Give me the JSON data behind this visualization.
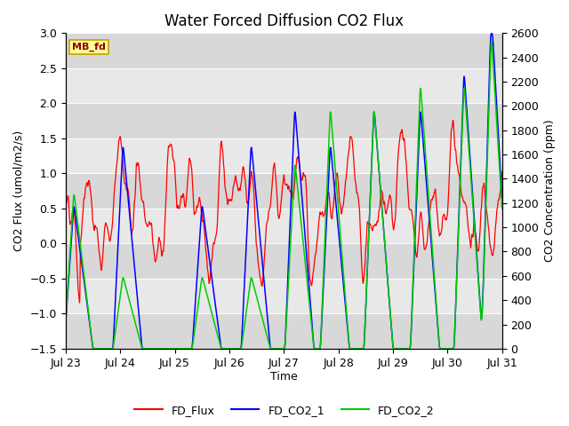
{
  "title": "Water Forced Diffusion CO2 Flux",
  "xlabel": "Time",
  "ylabel_left": "CO2 Flux (umol/m2/s)",
  "ylabel_right": "CO2 Concentration (ppm)",
  "ylim_left": [
    -1.5,
    3.0
  ],
  "ylim_right": [
    0,
    2600
  ],
  "xlim_start": 0,
  "xlim_end": 8,
  "xtick_labels": [
    "Jul 23",
    "Jul 24",
    "Jul 25",
    "Jul 26",
    "Jul 27",
    "Jul 28",
    "Jul 29",
    "Jul 30",
    "Jul 31"
  ],
  "xtick_positions": [
    0,
    1,
    2,
    3,
    4,
    5,
    6,
    7,
    8
  ],
  "background_color": "#ffffff",
  "plot_bg_color": "#f0f0f0",
  "label_box_text": "MB_fd",
  "label_box_color": "#ffff99",
  "label_box_edge": "#c8a000",
  "line_colors": {
    "FD_Flux": "#ff0000",
    "FD_CO2_1": "#0000ff",
    "FD_CO2_2": "#00cc00"
  },
  "legend_labels": [
    "FD_Flux",
    "FD_CO2_1",
    "FD_CO2_2"
  ],
  "title_fontsize": 12,
  "axis_fontsize": 9,
  "tick_fontsize": 9,
  "yticks_left": [
    -1.5,
    -1.0,
    -0.5,
    0.0,
    0.5,
    1.0,
    1.5,
    2.0,
    2.5,
    3.0
  ],
  "yticks_right": [
    0,
    200,
    400,
    600,
    800,
    1000,
    1200,
    1400,
    1600,
    1800,
    2000,
    2200,
    2400,
    2600
  ],
  "band_edges": [
    -1.5,
    -1.0,
    -0.5,
    0.0,
    0.5,
    1.0,
    1.5,
    2.0,
    2.5,
    3.0
  ],
  "band_colors_alt": [
    "#d8d8d8",
    "#e8e8e8"
  ]
}
